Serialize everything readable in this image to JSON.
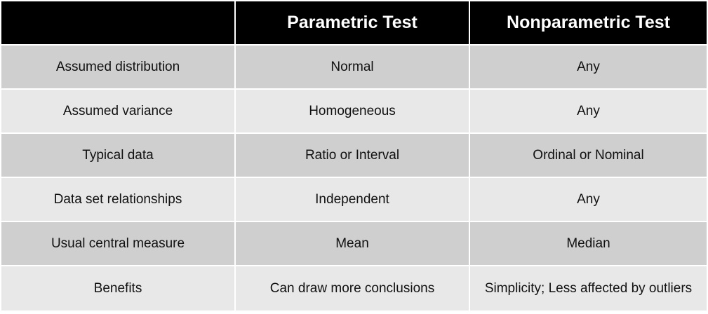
{
  "table": {
    "headers": [
      "",
      "Parametric Test",
      "Nonparametric Test"
    ],
    "rows": [
      {
        "label": "Assumed distribution",
        "parametric": "Normal",
        "nonparametric": "Any"
      },
      {
        "label": "Assumed variance",
        "parametric": "Homogeneous",
        "nonparametric": "Any"
      },
      {
        "label": "Typical data",
        "parametric": "Ratio or Interval",
        "nonparametric": "Ordinal or Nominal"
      },
      {
        "label": "Data set relationships",
        "parametric": "Independent",
        "nonparametric": "Any"
      },
      {
        "label": "Usual central measure",
        "parametric": "Mean",
        "nonparametric": "Median"
      },
      {
        "label": "Benefits",
        "parametric": "Can draw more conclusions",
        "nonparametric": "Simplicity; Less affected by outliers"
      }
    ]
  },
  "colors": {
    "header_bg": "#000000",
    "header_text": "#ffffff",
    "row_dark": "#cfcfcf",
    "row_light": "#e8e8e8"
  }
}
